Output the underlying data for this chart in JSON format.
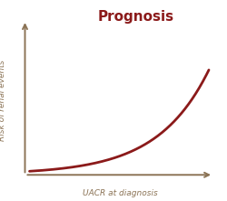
{
  "title": "Prognosis",
  "title_color": "#8B1A1A",
  "title_fontsize": 11,
  "xlabel": "UACR at diagnosis",
  "ylabel": "Risk of renal events",
  "axis_color": "#8B7355",
  "label_color": "#8B7355",
  "label_fontsize": 6.5,
  "curve_color": "#8B1A1A",
  "curve_linewidth": 2.0,
  "background_color": "#FFFFFF",
  "curve_exp": 3.5,
  "arrow_lw": 1.4,
  "arrow_mutation": 9
}
